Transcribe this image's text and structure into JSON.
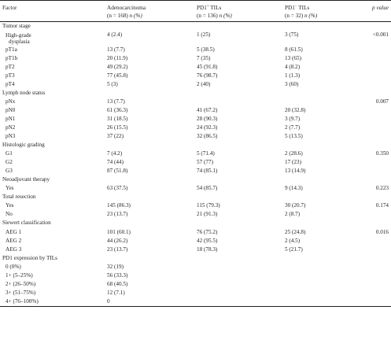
{
  "header": {
    "factor": "Factor",
    "col1_line1": "Adenocarcinoma",
    "col1_line2_n": "(n = 168)",
    "col1_line2_unit": "n (%)",
    "col2_line1_pre": "PD1",
    "col2_line1_sup": "+",
    "col2_line1_post": " TILs",
    "col2_line2_n": "(n = 136)",
    "col2_line2_unit": "n (%)",
    "col3_line1_pre": "PD1",
    "col3_line1_sup": "−",
    "col3_line1_post": " TILs",
    "col3_line2_n": "(n = 32)",
    "col3_line2_unit": "n (%)",
    "pvalue": "p value"
  },
  "rows": [
    {
      "type": "section",
      "label": "Tumor stage",
      "c1": "",
      "c2": "",
      "c3": "",
      "p": ""
    },
    {
      "type": "tall",
      "label": "High-grade\ndysplasia",
      "c1": "4 (2.4)",
      "c2": "1 (25)",
      "c3": "3 (75)",
      "p": "<0.001"
    },
    {
      "type": "item",
      "label": "pT1a",
      "c1": "13 (7.7)",
      "c2": "5 (38.5)",
      "c3": "8 (61.5)",
      "p": ""
    },
    {
      "type": "item",
      "label": "pT1b",
      "c1": "20 (11.9)",
      "c2": "7 (35)",
      "c3": "13 (65)",
      "p": ""
    },
    {
      "type": "item",
      "label": "pT2",
      "c1": "49 (29.2)",
      "c2": "45 (91.8)",
      "c3": "4 (8.2)",
      "p": ""
    },
    {
      "type": "item",
      "label": "pT3",
      "c1": "77 (45.8)",
      "c2": "76 (98.7)",
      "c3": "1 (1.3)",
      "p": ""
    },
    {
      "type": "item",
      "label": "pT4",
      "c1": "5 (3)",
      "c2": "2 (40)",
      "c3": "3 (60)",
      "p": ""
    },
    {
      "type": "section",
      "label": "Lymph node status",
      "c1": "",
      "c2": "",
      "c3": "",
      "p": ""
    },
    {
      "type": "item",
      "label": "pNx",
      "c1": "13 (7.7)",
      "c2": "",
      "c3": "",
      "p": "0.007"
    },
    {
      "type": "item",
      "label": "pN0",
      "c1": "61 (36.3)",
      "c2": "41 (67.2)",
      "c3": "20 (32.8)",
      "p": ""
    },
    {
      "type": "item",
      "label": "pN1",
      "c1": "31 (18.5)",
      "c2": "28 (90.3)",
      "c3": "3 (9.7)",
      "p": ""
    },
    {
      "type": "item",
      "label": "pN2",
      "c1": "26 (15.5)",
      "c2": "24 (92.3)",
      "c3": "2 (7.7)",
      "p": ""
    },
    {
      "type": "item",
      "label": "pN3",
      "c1": "37 (22)",
      "c2": "32 (86.5)",
      "c3": "5 (13.5)",
      "p": ""
    },
    {
      "type": "section",
      "label": "Histologic grading",
      "c1": "",
      "c2": "",
      "c3": "",
      "p": ""
    },
    {
      "type": "item",
      "label": "G1",
      "c1": "7 (4.2)",
      "c2": "5 (71.4)",
      "c3": "2 (28.6)",
      "p": "0.350"
    },
    {
      "type": "item",
      "label": "G2",
      "c1": "74 (44)",
      "c2": "57 (77)",
      "c3": "17 (23)",
      "p": ""
    },
    {
      "type": "item",
      "label": "G3",
      "c1": "87 (51.8)",
      "c2": "74 (85.1)",
      "c3": "13 (14.9)",
      "p": ""
    },
    {
      "type": "section",
      "label": "Neoadjuvant therapy",
      "c1": "",
      "c2": "",
      "c3": "",
      "p": ""
    },
    {
      "type": "item",
      "label": "Yes",
      "c1": "63 (37.5)",
      "c2": "54 (85.7)",
      "c3": "9 (14.3)",
      "p": "0.223"
    },
    {
      "type": "section",
      "label": "Total resection",
      "c1": "",
      "c2": "",
      "c3": "",
      "p": ""
    },
    {
      "type": "item",
      "label": "Yes",
      "c1": "145 (86.3)",
      "c2": "115 (79.3)",
      "c3": "30 (20.7)",
      "p": "0.174"
    },
    {
      "type": "item",
      "label": "No",
      "c1": "23 (13.7)",
      "c2": "21 (91.3)",
      "c3": "2 (8.7)",
      "p": ""
    },
    {
      "type": "section",
      "label": "Siewert classification",
      "c1": "",
      "c2": "",
      "c3": "",
      "p": ""
    },
    {
      "type": "item",
      "label": "AEG 1",
      "c1": "101 (60.1)",
      "c2": "76 (75.2)",
      "c3": "25 (24.8)",
      "p": "0.016"
    },
    {
      "type": "item",
      "label": "AEG 2",
      "c1": "44 (26.2)",
      "c2": "42 (95.5)",
      "c3": "2 (4.5)",
      "p": ""
    },
    {
      "type": "item",
      "label": "AEG 3",
      "c1": "23 (13.7)",
      "c2": "18 (78.3)",
      "c3": "5 (21.7)",
      "p": ""
    },
    {
      "type": "section",
      "label": "PD1 expression by TILs",
      "c1": "",
      "c2": "",
      "c3": "",
      "p": ""
    },
    {
      "type": "item",
      "label": "0 (0%)",
      "c1": "32 (19)",
      "c2": "",
      "c3": "",
      "p": ""
    },
    {
      "type": "item",
      "label": "1+ (5–25%)",
      "c1": "56 (33.3)",
      "c2": "",
      "c3": "",
      "p": ""
    },
    {
      "type": "item",
      "label": "2+ (26–50%)",
      "c1": "68 (40.5)",
      "c2": "",
      "c3": "",
      "p": ""
    },
    {
      "type": "item",
      "label": "3+ (51–75%)",
      "c1": "12 (7.1)",
      "c2": "",
      "c3": "",
      "p": ""
    },
    {
      "type": "item",
      "label": "4+ (76–100%)",
      "c1": "0",
      "c2": "",
      "c3": "",
      "p": ""
    }
  ]
}
